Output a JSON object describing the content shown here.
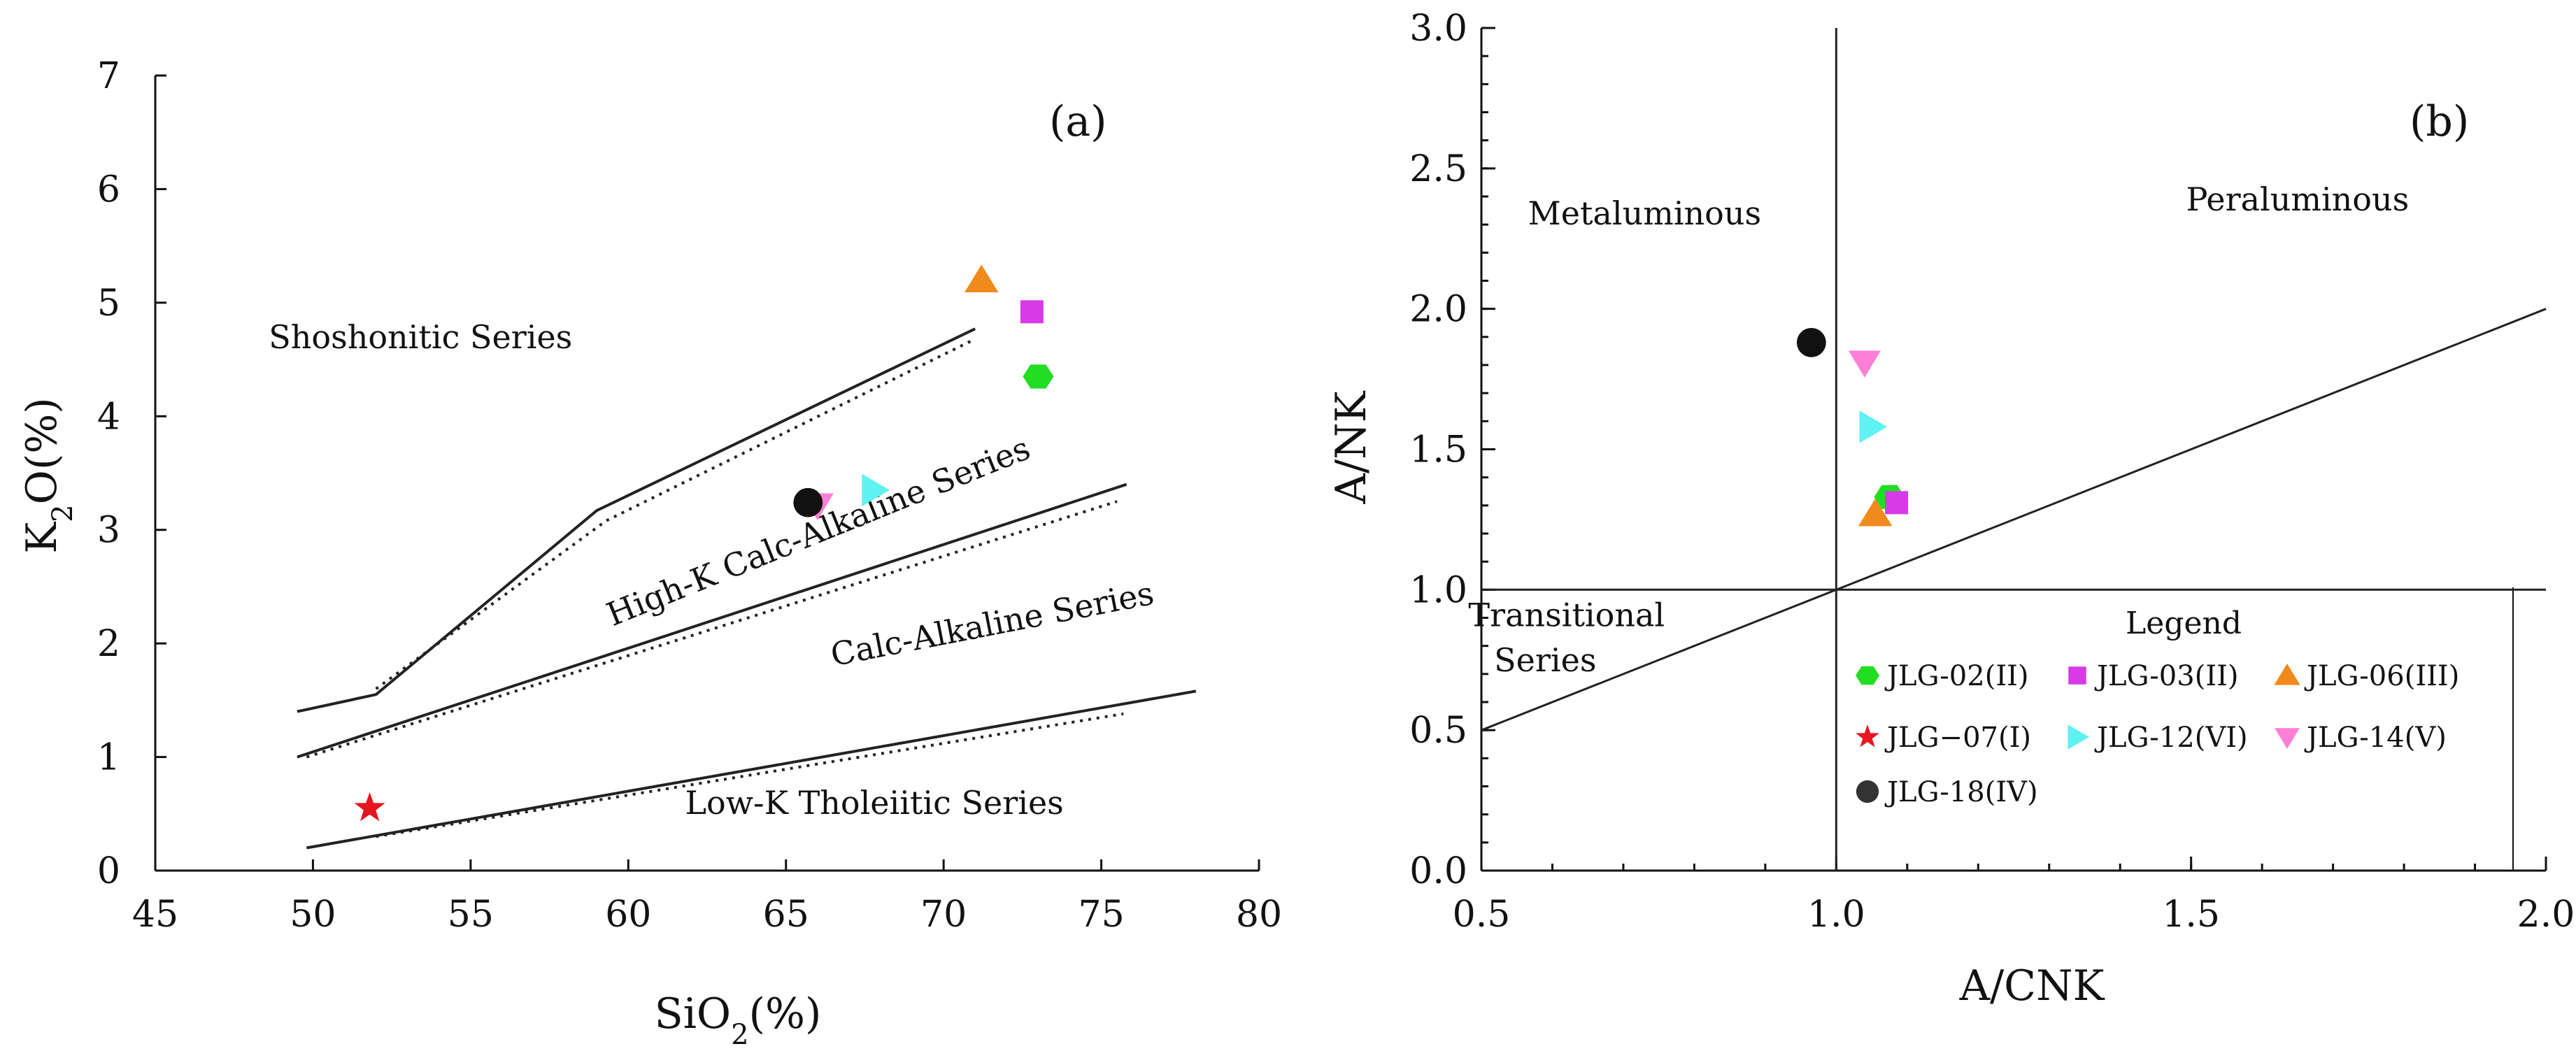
{
  "chart_data": [
    {
      "id": "a",
      "type": "scatter",
      "panel_label": "(a)",
      "title": "",
      "xlabel": "SiO2(%)",
      "ylabel": "K2O(%)",
      "xlim": [
        45,
        80
      ],
      "ylim": [
        0,
        7
      ],
      "x_ticks": [
        45,
        50,
        55,
        60,
        65,
        70,
        75,
        80
      ],
      "y_ticks": [
        0,
        1,
        2,
        3,
        4,
        5,
        6,
        7
      ],
      "series": [
        {
          "name": "JLG-02(II)",
          "x": [
            73.0
          ],
          "y": [
            4.35
          ],
          "color": "#22dd22",
          "marker": "hexagon"
        },
        {
          "name": "JLG-03(II)",
          "x": [
            72.8
          ],
          "y": [
            4.92
          ],
          "color": "#d63be6",
          "marker": "square"
        },
        {
          "name": "JLG-06(III)",
          "x": [
            71.2
          ],
          "y": [
            5.2
          ],
          "color": "#f08a1c",
          "marker": "triangle-up"
        },
        {
          "name": "JLG-07(I)",
          "x": [
            51.8
          ],
          "y": [
            0.55
          ],
          "color": "#e8141e",
          "marker": "star"
        },
        {
          "name": "JLG-12(VI)",
          "x": [
            67.8
          ],
          "y": [
            3.35
          ],
          "color": "#5ef2f2",
          "marker": "triangle-right"
        },
        {
          "name": "JLG-14(V)",
          "x": [
            66.0
          ],
          "y": [
            3.22
          ],
          "color": "#ff7fd7",
          "marker": "triangle-down"
        },
        {
          "name": "JLG-18(IV)",
          "x": [
            65.7
          ],
          "y": [
            3.24
          ],
          "color": "#111111",
          "marker": "circle"
        }
      ],
      "boundaries": [
        {
          "style": "solid",
          "x": [
            49.5,
            52,
            59,
            71
          ],
          "y": [
            1.4,
            1.55,
            3.17,
            4.77
          ]
        },
        {
          "style": "dotted",
          "x": [
            52,
            59.3,
            71
          ],
          "y": [
            1.6,
            3.08,
            4.68
          ]
        },
        {
          "style": "solid",
          "x": [
            49.5,
            75.8
          ],
          "y": [
            1.0,
            3.4
          ]
        },
        {
          "style": "dotted",
          "x": [
            49.8,
            75.5
          ],
          "y": [
            1.0,
            3.25
          ]
        },
        {
          "style": "solid",
          "x": [
            49.8,
            78
          ],
          "y": [
            0.2,
            1.58
          ]
        },
        {
          "style": "dotted",
          "x": [
            52,
            75.7
          ],
          "y": [
            0.3,
            1.38
          ]
        }
      ],
      "field_labels": [
        {
          "text": "Shoshonitic Series",
          "x": 48.6,
          "y": 4.6,
          "angle": 0
        },
        {
          "text": "High-K Calc-Alkaline Series",
          "x": 59.5,
          "y": 2.15,
          "angle": -22
        },
        {
          "text": "Calc-Alkaline Series",
          "x": 66.5,
          "y": 1.8,
          "angle": -11
        },
        {
          "text": "Low-K Tholeiitic Series",
          "x": 61.8,
          "y": 0.5,
          "angle": 0
        }
      ]
    },
    {
      "id": "b",
      "type": "scatter",
      "panel_label": "(b)",
      "title": "",
      "xlabel": "A/CNK",
      "ylabel": "A/NK",
      "xlim": [
        0.5,
        2.0
      ],
      "ylim": [
        0.0,
        3.0
      ],
      "x_ticks": [
        0.5,
        1.0,
        1.5,
        2.0
      ],
      "x_tick_labels": [
        "0.5",
        "1.0",
        "1.5",
        "2.0"
      ],
      "y_ticks": [
        0.0,
        0.5,
        1.0,
        1.5,
        2.0,
        2.5,
        3.0
      ],
      "y_tick_labels": [
        "0.0",
        "0.5",
        "1.0",
        "1.5",
        "2.0",
        "2.5",
        "3.0"
      ],
      "series": [
        {
          "name": "JLG-02(II)",
          "x": [
            1.075
          ],
          "y": [
            1.33
          ],
          "color": "#22dd22",
          "marker": "hexagon"
        },
        {
          "name": "JLG-03(II)",
          "x": [
            1.085
          ],
          "y": [
            1.31
          ],
          "color": "#d63be6",
          "marker": "square"
        },
        {
          "name": "JLG-06(III)",
          "x": [
            1.055
          ],
          "y": [
            1.27
          ],
          "color": "#f08a1c",
          "marker": "triangle-up"
        },
        {
          "name": "JLG-12(VI)",
          "x": [
            1.05
          ],
          "y": [
            1.58
          ],
          "color": "#5ef2f2",
          "marker": "triangle-right"
        },
        {
          "name": "JLG-14(V)",
          "x": [
            1.04
          ],
          "y": [
            1.81
          ],
          "color": "#ff7fd7",
          "marker": "triangle-down"
        },
        {
          "name": "JLG-18(IV)",
          "x": [
            0.965
          ],
          "y": [
            1.88
          ],
          "color": "#111111",
          "marker": "circle"
        }
      ],
      "boundaries": [
        {
          "style": "solid",
          "x": [
            1.0,
            1.0
          ],
          "y": [
            0.0,
            3.0
          ]
        },
        {
          "style": "solid",
          "x": [
            0.5,
            2.0
          ],
          "y": [
            1.0,
            1.0
          ]
        },
        {
          "style": "solid",
          "x": [
            0.5,
            2.0
          ],
          "y": [
            0.5,
            2.0
          ]
        }
      ],
      "field_labels": [
        {
          "text": "Metaluminous",
          "x": 0.73,
          "y": 2.3
        },
        {
          "text": "Peraluminous",
          "x": 1.65,
          "y": 2.35
        },
        {
          "text": "Transitional",
          "x": 0.62,
          "y": 0.87
        },
        {
          "text": "Series",
          "x": 0.59,
          "y": 0.71
        }
      ],
      "legend": {
        "title": "Legend",
        "placement": "lower-right",
        "items": [
          {
            "label": "JLG-02(II)",
            "color": "#22dd22",
            "marker": "hexagon"
          },
          {
            "label": "JLG-03(II)",
            "color": "#d63be6",
            "marker": "square"
          },
          {
            "label": "JLG-06(III)",
            "color": "#f08a1c",
            "marker": "triangle-up"
          },
          {
            "label": "JLG−07(I)",
            "color": "#e8141e",
            "marker": "star"
          },
          {
            "label": "JLG-12(VI)",
            "color": "#5ef2f2",
            "marker": "triangle-right"
          },
          {
            "label": "JLG-14(V)",
            "color": "#ff7fd7",
            "marker": "triangle-down"
          },
          {
            "label": "JLG-18(IV)",
            "color": "#333333",
            "marker": "circle"
          }
        ]
      }
    }
  ]
}
